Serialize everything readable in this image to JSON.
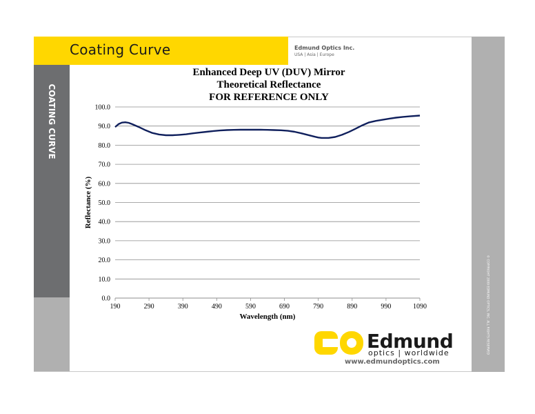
{
  "header": {
    "title": "Coating Curve",
    "company_name": "Edmund Optics Inc.",
    "company_regions": "USA | Asia | Europe"
  },
  "sidebar": {
    "vertical_label": "COATING CURVE"
  },
  "right_strip": {
    "copyright": "© COPYRIGHT 2009 EDMUND OPTICS, INC. ALL RIGHTS RESERVED"
  },
  "logo": {
    "wordmark": "Edmund",
    "tagline_left": "optics",
    "tagline_sep": "|",
    "tagline_right": "worldwide",
    "url": "www.edmundoptics.com",
    "brand_color": "#ffd700"
  },
  "colors": {
    "curve": "#0f1f5c",
    "gridline": "#8c8c8c",
    "header_yellow": "#ffd700",
    "sidebar_dark": "#6d6e70",
    "sidebar_light": "#b0b0b0"
  },
  "chart_data": {
    "type": "line",
    "title_lines": [
      "Enhanced Deep UV (DUV) Mirror",
      "Theoretical Reflectance",
      "FOR REFERENCE ONLY"
    ],
    "xlabel": "Wavelength (nm)",
    "ylabel": "Reflectance (%)",
    "xlim": [
      190,
      1090
    ],
    "ylim": [
      0,
      100
    ],
    "xticks": [
      190,
      290,
      390,
      490,
      590,
      690,
      790,
      890,
      990,
      1090
    ],
    "yticks": [
      "0.0",
      "10.0",
      "20.0",
      "30.0",
      "40.0",
      "50.0",
      "60.0",
      "70.0",
      "80.0",
      "90.0",
      "100.0"
    ],
    "grid": "horizontal",
    "series": [
      {
        "x": [
          190,
          200,
          210,
          220,
          230,
          240,
          260,
          280,
          300,
          320,
          340,
          360,
          380,
          400,
          420,
          440,
          460,
          480,
          500,
          520,
          540,
          560,
          580,
          600,
          620,
          640,
          660,
          680,
          700,
          720,
          740,
          760,
          780,
          790,
          800,
          820,
          840,
          860,
          880,
          900,
          920,
          940,
          960,
          980,
          1000,
          1020,
          1040,
          1060,
          1090
        ],
        "y": [
          89.5,
          91.0,
          91.8,
          92.0,
          91.7,
          91.0,
          89.5,
          87.8,
          86.4,
          85.6,
          85.2,
          85.2,
          85.4,
          85.7,
          86.2,
          86.6,
          87.0,
          87.4,
          87.7,
          87.9,
          88.0,
          88.1,
          88.1,
          88.1,
          88.1,
          88.0,
          87.9,
          87.8,
          87.5,
          87.0,
          86.2,
          85.3,
          84.4,
          84.0,
          83.8,
          83.8,
          84.3,
          85.4,
          86.9,
          88.6,
          90.4,
          91.9,
          92.7,
          93.3,
          93.9,
          94.4,
          94.8,
          95.1,
          95.5
        ]
      }
    ]
  }
}
